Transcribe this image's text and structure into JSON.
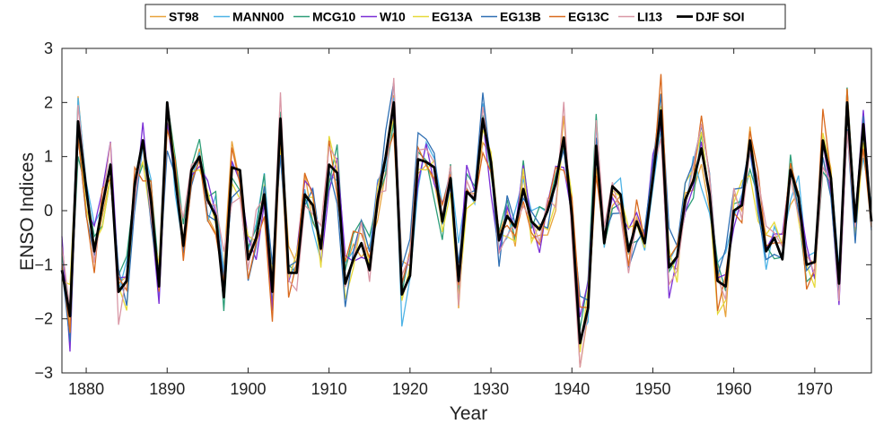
{
  "chart_data": {
    "type": "line",
    "title": "",
    "xlabel": "Year",
    "ylabel": "ENSO Indices",
    "xlim": [
      1877,
      1977
    ],
    "ylim": [
      -3,
      3
    ],
    "xticks": [
      "1880",
      "1890",
      "1900",
      "1910",
      "1920",
      "1930",
      "1940",
      "1950",
      "1960",
      "1970"
    ],
    "yticks": [
      "3",
      "2",
      "1",
      "0",
      "−1",
      "−2",
      "−3"
    ],
    "xtick_values": [
      1880,
      1890,
      1900,
      1910,
      1920,
      1930,
      1940,
      1950,
      1960,
      1970
    ],
    "ytick_values": [
      3,
      2,
      1,
      0,
      -1,
      -2,
      -3
    ],
    "legend_position": "top",
    "grid": false,
    "x_start": 1877,
    "soi_values": [
      -1.1,
      -1.95,
      1.65,
      0.4,
      -0.75,
      0.1,
      0.85,
      -1.5,
      -1.3,
      0.5,
      1.3,
      0.2,
      -1.4,
      2.0,
      0.6,
      -0.65,
      0.75,
      1.0,
      0.2,
      -0.1,
      -1.6,
      0.8,
      0.75,
      -0.9,
      -0.5,
      0.3,
      -1.5,
      1.7,
      -1.15,
      -1.15,
      0.3,
      0.1,
      -0.7,
      0.85,
      0.7,
      -1.35,
      -0.9,
      -0.6,
      -1.1,
      0.2,
      1.0,
      2.0,
      -1.55,
      -1.2,
      0.95,
      0.9,
      0.8,
      -0.2,
      0.6,
      -1.3,
      0.35,
      0.2,
      1.7,
      0.9,
      -0.55,
      -0.1,
      -0.3,
      0.4,
      -0.2,
      -0.35,
      0.0,
      0.5,
      1.35,
      -0.1,
      -2.45,
      -1.8,
      1.2,
      -0.6,
      0.45,
      0.3,
      -0.75,
      -0.2,
      -0.6,
      0.6,
      1.85,
      -1.05,
      -0.85,
      0.2,
      0.55,
      1.15,
      0.3,
      -1.3,
      -1.4,
      0.0,
      0.1,
      1.3,
      0.3,
      -0.75,
      -0.5,
      -0.9,
      0.75,
      0.25,
      -1.0,
      -0.95,
      1.3,
      0.6,
      -1.35,
      2.0,
      -0.2,
      1.6,
      -0.2
    ],
    "series": [
      {
        "name": "ST98",
        "color": "#E8A33C",
        "seed": 11
      },
      {
        "name": "MANN00",
        "color": "#4DB3E6",
        "seed": 23
      },
      {
        "name": "MCG10",
        "color": "#2E9E78",
        "seed": 37
      },
      {
        "name": "W10",
        "color": "#7B2FD6",
        "seed": 41
      },
      {
        "name": "EG13A",
        "color": "#E6D93A",
        "seed": 53
      },
      {
        "name": "EG13B",
        "color": "#2F6FB3",
        "seed": 67
      },
      {
        "name": "EG13C",
        "color": "#D96A1E",
        "seed": 79
      },
      {
        "name": "LI13",
        "color": "#D998A6",
        "seed": 83
      },
      {
        "name": "DJF SOI",
        "color": "#000000"
      }
    ]
  }
}
